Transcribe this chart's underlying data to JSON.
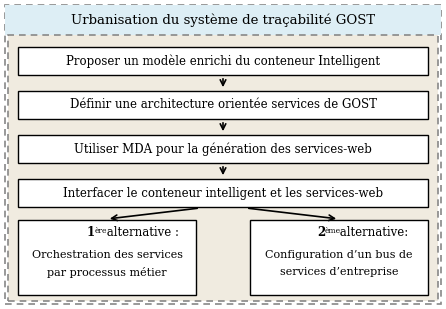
{
  "title": "Urbanisation du système de traçabilité GOST",
  "title_bg": "#ddeef5",
  "outer_bg": "#ffffff",
  "inner_bg": "#f0ebe0",
  "box_bg": "#ffffff",
  "box_border": "#000000",
  "outer_border": "#888888",
  "inner_border": "#888888",
  "boxes": [
    "Proposer un modèle enrichi du conteneur Intelligent",
    "Définir une architecture orientée services de GOST",
    "Utiliser MDA pour la génération des services-web",
    "Interfacer le conteneur intelligent et les services-web"
  ],
  "figsize": [
    4.46,
    3.09
  ],
  "dpi": 100
}
